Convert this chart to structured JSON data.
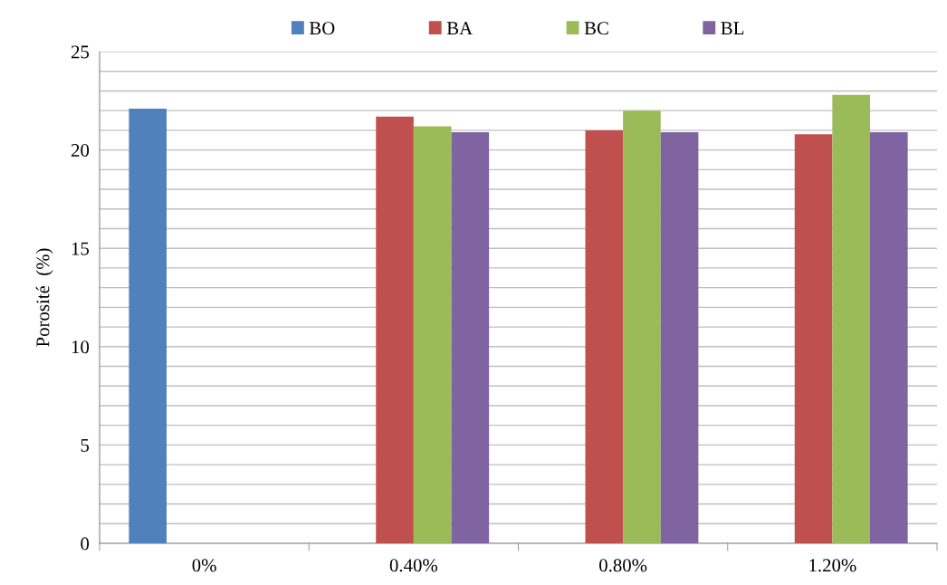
{
  "chart_data": {
    "type": "bar",
    "ylabel": "Porosité  (%)",
    "categories": [
      "0%",
      "0.40%",
      "0.80%",
      "1.20%"
    ],
    "series": [
      {
        "name": "BO",
        "color": "#4f81bd",
        "values": [
          22.1,
          null,
          null,
          null
        ]
      },
      {
        "name": "BA",
        "color": "#c0504d",
        "values": [
          null,
          21.7,
          21.0,
          20.8
        ]
      },
      {
        "name": "BC",
        "color": "#9bbb59",
        "values": [
          null,
          21.2,
          22.0,
          22.8
        ]
      },
      {
        "name": "BL",
        "color": "#8064a2",
        "values": [
          null,
          20.9,
          20.9,
          20.9
        ]
      }
    ],
    "ylim": [
      0,
      25
    ],
    "yticks": [
      0,
      {
        "value": 1,
        "label": null
      },
      {
        "value": 2,
        "label": null
      },
      {
        "value": 3,
        "label": null
      },
      {
        "value": 4,
        "label": null
      },
      5,
      {
        "value": 6,
        "label": null
      },
      {
        "value": 7,
        "label": null
      },
      {
        "value": 8,
        "label": null
      },
      {
        "value": 9,
        "label": null
      },
      10,
      {
        "value": 11,
        "label": null
      },
      {
        "value": 12,
        "label": null
      },
      {
        "value": 13,
        "label": null
      },
      {
        "value": 14,
        "label": null
      },
      15,
      {
        "value": 16,
        "label": null
      },
      {
        "value": 17,
        "label": null
      },
      {
        "value": 18,
        "label": null
      },
      {
        "value": 19,
        "label": null
      },
      20,
      {
        "value": 21,
        "label": null
      },
      {
        "value": 22,
        "label": null
      },
      {
        "value": 23,
        "label": null
      },
      {
        "value": 24,
        "label": null
      },
      25
    ],
    "grid": "y",
    "legend": "top"
  }
}
